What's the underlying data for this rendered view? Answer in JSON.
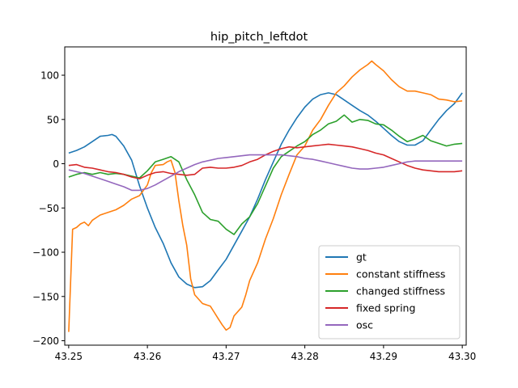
{
  "chart_data": {
    "type": "line",
    "title": "hip_pitch_leftdot",
    "xlabel": "",
    "ylabel": "",
    "xlim": [
      43.2495,
      43.3005
    ],
    "ylim": [
      -205,
      132
    ],
    "xticks": [
      43.25,
      43.26,
      43.27,
      43.28,
      43.29,
      43.3
    ],
    "xtick_labels": [
      "43.25",
      "43.26",
      "43.27",
      "43.28",
      "43.29",
      "43.30"
    ],
    "yticks": [
      -200,
      -150,
      -100,
      -50,
      0,
      50,
      100
    ],
    "ytick_labels": [
      "−200",
      "−150",
      "−100",
      "−50",
      "0",
      "50",
      "100"
    ],
    "grid": false,
    "legend_position": "lower-right",
    "series": [
      {
        "name": "gt",
        "color": "#1f77b4",
        "points": [
          [
            43.25,
            12
          ],
          [
            43.251,
            15
          ],
          [
            43.252,
            19
          ],
          [
            43.253,
            25
          ],
          [
            43.254,
            31
          ],
          [
            43.255,
            32
          ],
          [
            43.2555,
            33
          ],
          [
            43.256,
            31
          ],
          [
            43.257,
            20
          ],
          [
            43.258,
            4
          ],
          [
            43.259,
            -25
          ],
          [
            43.26,
            -50
          ],
          [
            43.261,
            -72
          ],
          [
            43.262,
            -90
          ],
          [
            43.263,
            -112
          ],
          [
            43.264,
            -128
          ],
          [
            43.265,
            -136
          ],
          [
            43.266,
            -140
          ],
          [
            43.267,
            -139
          ],
          [
            43.268,
            -132
          ],
          [
            43.269,
            -120
          ],
          [
            43.27,
            -108
          ],
          [
            43.271,
            -92
          ],
          [
            43.272,
            -76
          ],
          [
            43.273,
            -60
          ],
          [
            43.274,
            -40
          ],
          [
            43.275,
            -18
          ],
          [
            43.276,
            2
          ],
          [
            43.277,
            22
          ],
          [
            43.278,
            38
          ],
          [
            43.279,
            52
          ],
          [
            43.28,
            64
          ],
          [
            43.281,
            73
          ],
          [
            43.282,
            78
          ],
          [
            43.283,
            80
          ],
          [
            43.284,
            78
          ],
          [
            43.285,
            72
          ],
          [
            43.286,
            66
          ],
          [
            43.287,
            60
          ],
          [
            43.288,
            55
          ],
          [
            43.289,
            48
          ],
          [
            43.29,
            40
          ],
          [
            43.291,
            32
          ],
          [
            43.292,
            25
          ],
          [
            43.293,
            21
          ],
          [
            43.294,
            21
          ],
          [
            43.295,
            26
          ],
          [
            43.296,
            38
          ],
          [
            43.297,
            50
          ],
          [
            43.298,
            60
          ],
          [
            43.299,
            68
          ],
          [
            43.2995,
            74
          ],
          [
            43.3,
            80
          ]
        ]
      },
      {
        "name": "constant stiffness",
        "color": "#ff7f0e",
        "points": [
          [
            43.25,
            -190
          ],
          [
            43.2505,
            -74
          ],
          [
            43.251,
            -72
          ],
          [
            43.2515,
            -68
          ],
          [
            43.252,
            -66
          ],
          [
            43.2525,
            -70
          ],
          [
            43.253,
            -64
          ],
          [
            43.254,
            -58
          ],
          [
            43.255,
            -55
          ],
          [
            43.256,
            -52
          ],
          [
            43.257,
            -47
          ],
          [
            43.258,
            -40
          ],
          [
            43.259,
            -36
          ],
          [
            43.26,
            -24
          ],
          [
            43.2605,
            -10
          ],
          [
            43.261,
            -2
          ],
          [
            43.262,
            -1
          ],
          [
            43.2625,
            2
          ],
          [
            43.263,
            4
          ],
          [
            43.2635,
            -10
          ],
          [
            43.264,
            -42
          ],
          [
            43.2645,
            -70
          ],
          [
            43.265,
            -92
          ],
          [
            43.2655,
            -130
          ],
          [
            43.266,
            -148
          ],
          [
            43.267,
            -158
          ],
          [
            43.268,
            -161
          ],
          [
            43.2685,
            -168
          ],
          [
            43.269,
            -175
          ],
          [
            43.2695,
            -182
          ],
          [
            43.27,
            -188
          ],
          [
            43.2705,
            -185
          ],
          [
            43.271,
            -172
          ],
          [
            43.272,
            -162
          ],
          [
            43.2725,
            -148
          ],
          [
            43.273,
            -132
          ],
          [
            43.274,
            -112
          ],
          [
            43.275,
            -85
          ],
          [
            43.276,
            -62
          ],
          [
            43.277,
            -35
          ],
          [
            43.278,
            -12
          ],
          [
            43.279,
            10
          ],
          [
            43.28,
            20
          ],
          [
            43.281,
            38
          ],
          [
            43.282,
            50
          ],
          [
            43.283,
            66
          ],
          [
            43.284,
            80
          ],
          [
            43.285,
            88
          ],
          [
            43.286,
            98
          ],
          [
            43.287,
            106
          ],
          [
            43.288,
            112
          ],
          [
            43.2885,
            116
          ],
          [
            43.289,
            112
          ],
          [
            43.29,
            105
          ],
          [
            43.291,
            95
          ],
          [
            43.292,
            87
          ],
          [
            43.293,
            82
          ],
          [
            43.294,
            82
          ],
          [
            43.295,
            80
          ],
          [
            43.296,
            78
          ],
          [
            43.297,
            73
          ],
          [
            43.298,
            72
          ],
          [
            43.299,
            70
          ],
          [
            43.3,
            71
          ]
        ]
      },
      {
        "name": "changed stiffness",
        "color": "#2ca02c",
        "points": [
          [
            43.25,
            -15
          ],
          [
            43.251,
            -12
          ],
          [
            43.252,
            -10
          ],
          [
            43.253,
            -12
          ],
          [
            43.254,
            -10
          ],
          [
            43.255,
            -12
          ],
          [
            43.256,
            -11
          ],
          [
            43.257,
            -12
          ],
          [
            43.258,
            -14
          ],
          [
            43.259,
            -16
          ],
          [
            43.26,
            -8
          ],
          [
            43.261,
            2
          ],
          [
            43.262,
            5
          ],
          [
            43.263,
            8
          ],
          [
            43.264,
            2
          ],
          [
            43.265,
            -18
          ],
          [
            43.266,
            -35
          ],
          [
            43.267,
            -55
          ],
          [
            43.268,
            -63
          ],
          [
            43.269,
            -65
          ],
          [
            43.27,
            -74
          ],
          [
            43.271,
            -80
          ],
          [
            43.272,
            -68
          ],
          [
            43.273,
            -60
          ],
          [
            43.274,
            -45
          ],
          [
            43.275,
            -25
          ],
          [
            43.276,
            -5
          ],
          [
            43.277,
            8
          ],
          [
            43.278,
            14
          ],
          [
            43.279,
            20
          ],
          [
            43.28,
            25
          ],
          [
            43.281,
            33
          ],
          [
            43.282,
            38
          ],
          [
            43.283,
            45
          ],
          [
            43.284,
            48
          ],
          [
            43.285,
            55
          ],
          [
            43.286,
            47
          ],
          [
            43.287,
            50
          ],
          [
            43.288,
            49
          ],
          [
            43.289,
            45
          ],
          [
            43.29,
            44
          ],
          [
            43.291,
            38
          ],
          [
            43.292,
            31
          ],
          [
            43.293,
            25
          ],
          [
            43.294,
            28
          ],
          [
            43.295,
            32
          ],
          [
            43.296,
            26
          ],
          [
            43.297,
            23
          ],
          [
            43.298,
            20
          ],
          [
            43.299,
            22
          ],
          [
            43.3,
            23
          ]
        ]
      },
      {
        "name": "fixed spring",
        "color": "#d62728",
        "points": [
          [
            43.25,
            -2
          ],
          [
            43.251,
            -1
          ],
          [
            43.252,
            -4
          ],
          [
            43.253,
            -5
          ],
          [
            43.254,
            -7
          ],
          [
            43.255,
            -9
          ],
          [
            43.256,
            -10
          ],
          [
            43.257,
            -12
          ],
          [
            43.258,
            -15
          ],
          [
            43.259,
            -17
          ],
          [
            43.26,
            -13
          ],
          [
            43.261,
            -10
          ],
          [
            43.262,
            -9
          ],
          [
            43.263,
            -11
          ],
          [
            43.264,
            -12
          ],
          [
            43.265,
            -13
          ],
          [
            43.266,
            -12
          ],
          [
            43.267,
            -5
          ],
          [
            43.268,
            -4
          ],
          [
            43.269,
            -5
          ],
          [
            43.27,
            -5
          ],
          [
            43.271,
            -4
          ],
          [
            43.272,
            -2
          ],
          [
            43.273,
            2
          ],
          [
            43.274,
            5
          ],
          [
            43.275,
            10
          ],
          [
            43.276,
            14
          ],
          [
            43.277,
            17
          ],
          [
            43.278,
            19
          ],
          [
            43.279,
            18
          ],
          [
            43.28,
            19
          ],
          [
            43.281,
            20
          ],
          [
            43.282,
            21
          ],
          [
            43.283,
            22
          ],
          [
            43.284,
            21
          ],
          [
            43.285,
            20
          ],
          [
            43.286,
            19
          ],
          [
            43.287,
            17
          ],
          [
            43.288,
            15
          ],
          [
            43.289,
            12
          ],
          [
            43.29,
            10
          ],
          [
            43.291,
            6
          ],
          [
            43.292,
            2
          ],
          [
            43.293,
            -2
          ],
          [
            43.294,
            -5
          ],
          [
            43.295,
            -7
          ],
          [
            43.296,
            -8
          ],
          [
            43.297,
            -9
          ],
          [
            43.298,
            -9
          ],
          [
            43.299,
            -9
          ],
          [
            43.3,
            -8
          ]
        ]
      },
      {
        "name": "osc",
        "color": "#9467bd",
        "points": [
          [
            43.25,
            -7
          ],
          [
            43.251,
            -9
          ],
          [
            43.252,
            -11
          ],
          [
            43.253,
            -14
          ],
          [
            43.254,
            -17
          ],
          [
            43.255,
            -20
          ],
          [
            43.256,
            -23
          ],
          [
            43.257,
            -26
          ],
          [
            43.258,
            -30
          ],
          [
            43.259,
            -30
          ],
          [
            43.26,
            -28
          ],
          [
            43.261,
            -24
          ],
          [
            43.262,
            -19
          ],
          [
            43.263,
            -14
          ],
          [
            43.264,
            -9
          ],
          [
            43.265,
            -5
          ],
          [
            43.266,
            -1
          ],
          [
            43.267,
            2
          ],
          [
            43.268,
            4
          ],
          [
            43.269,
            6
          ],
          [
            43.27,
            7
          ],
          [
            43.271,
            8
          ],
          [
            43.272,
            9
          ],
          [
            43.273,
            10
          ],
          [
            43.274,
            10
          ],
          [
            43.275,
            10
          ],
          [
            43.276,
            10
          ],
          [
            43.277,
            10
          ],
          [
            43.278,
            9
          ],
          [
            43.279,
            8
          ],
          [
            43.28,
            6
          ],
          [
            43.281,
            5
          ],
          [
            43.282,
            3
          ],
          [
            43.283,
            1
          ],
          [
            43.284,
            -1
          ],
          [
            43.285,
            -3
          ],
          [
            43.286,
            -5
          ],
          [
            43.287,
            -6
          ],
          [
            43.288,
            -6
          ],
          [
            43.289,
            -5
          ],
          [
            43.29,
            -4
          ],
          [
            43.291,
            -2
          ],
          [
            43.292,
            0
          ],
          [
            43.293,
            2
          ],
          [
            43.294,
            3
          ],
          [
            43.295,
            3
          ],
          [
            43.296,
            3
          ],
          [
            43.297,
            3
          ],
          [
            43.298,
            3
          ],
          [
            43.299,
            3
          ],
          [
            43.3,
            3
          ]
        ]
      }
    ]
  }
}
